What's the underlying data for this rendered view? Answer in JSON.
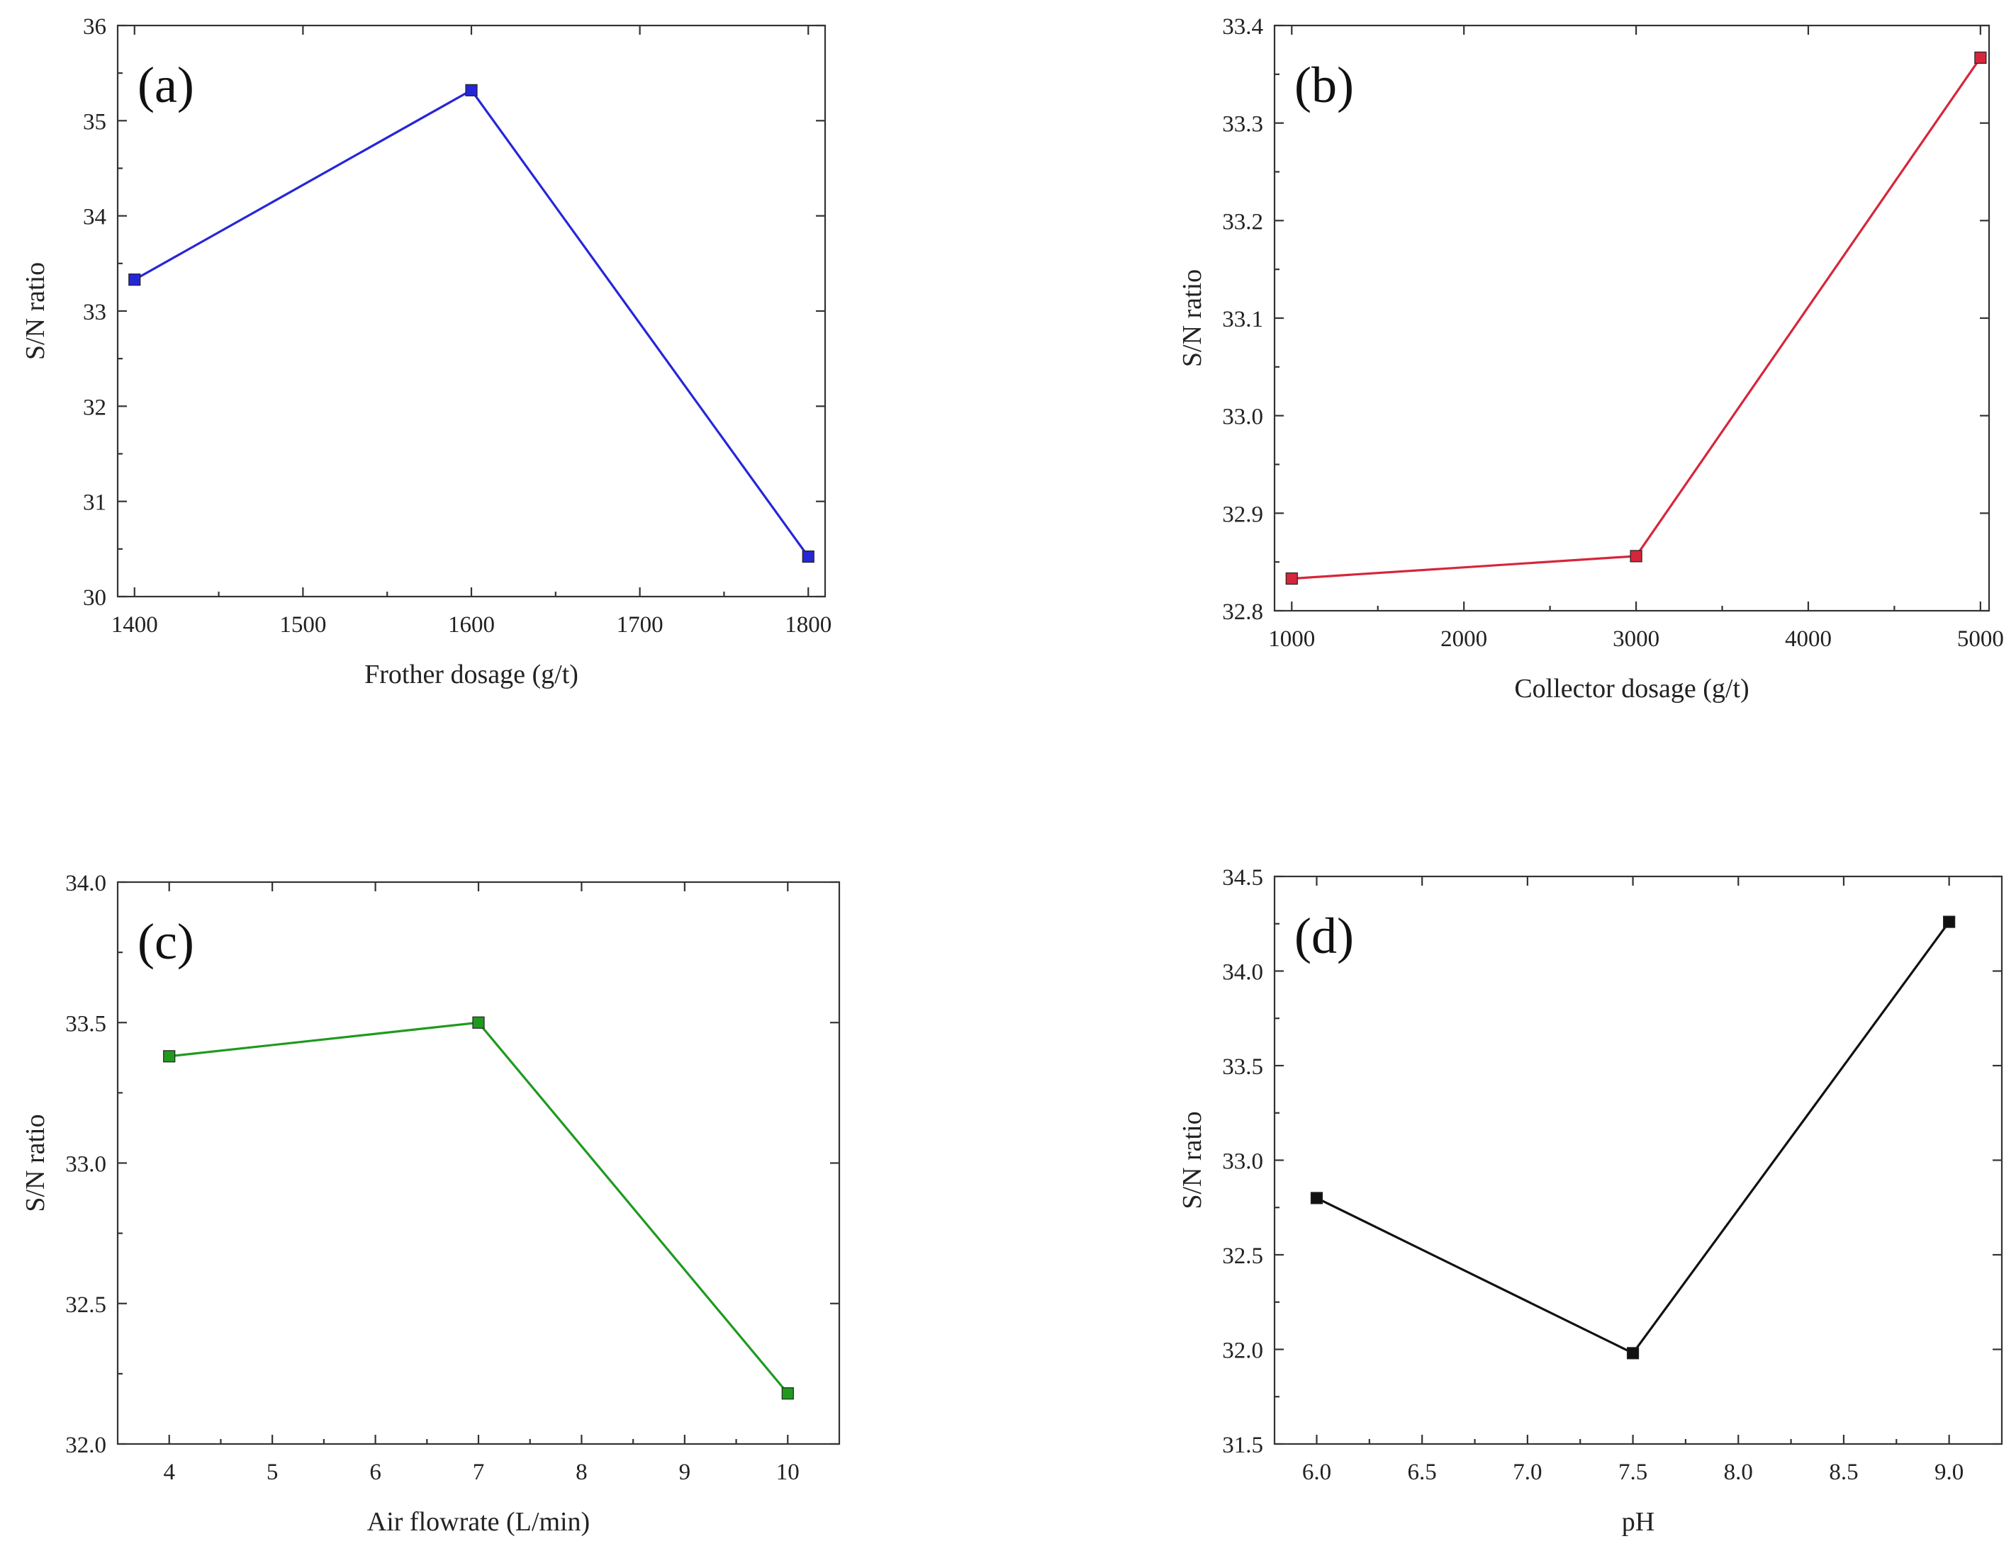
{
  "chart_data": [
    {
      "type": "line",
      "panel_label": "(a)",
      "xlabel": "Frother dosage (g/t)",
      "ylabel": "S/N ratio",
      "x": [
        1400,
        1600,
        1800
      ],
      "y": [
        33.33,
        35.32,
        30.42
      ],
      "xlim": [
        1390,
        1810
      ],
      "ylim": [
        30,
        36
      ],
      "xticks": [
        1400,
        1500,
        1600,
        1700,
        1800
      ],
      "yticks": [
        30,
        31,
        32,
        33,
        34,
        35,
        36
      ],
      "xtick_labels": [
        "1400",
        "1500",
        "1600",
        "1700",
        "1800"
      ],
      "ytick_labels": [
        "30",
        "31",
        "32",
        "33",
        "34",
        "35",
        "36"
      ],
      "color": "#2626d9",
      "marker": "square",
      "grid": false
    },
    {
      "type": "line",
      "panel_label": "(b)",
      "xlabel": "Collector dosage (g/t)",
      "ylabel": "S/N ratio",
      "x": [
        1000,
        3000,
        5000
      ],
      "y": [
        32.833,
        32.856,
        33.367
      ],
      "xlim": [
        900,
        5050
      ],
      "ylim": [
        32.8,
        33.4
      ],
      "xticks": [
        1000,
        2000,
        3000,
        4000,
        5000
      ],
      "yticks": [
        32.8,
        32.9,
        33.0,
        33.1,
        33.2,
        33.3,
        33.4
      ],
      "xtick_labels": [
        "1000",
        "2000",
        "3000",
        "4000",
        "5000"
      ],
      "ytick_labels": [
        "32.8",
        "32.9",
        "33.0",
        "33.1",
        "33.2",
        "33.3",
        "33.4"
      ],
      "color": "#d6263b",
      "marker": "square",
      "grid": false
    },
    {
      "type": "line",
      "panel_label": "(c)",
      "xlabel": "Air flowrate (L/min)",
      "ylabel": "S/N ratio",
      "x": [
        4,
        7,
        10
      ],
      "y": [
        33.38,
        33.5,
        32.18
      ],
      "xlim": [
        3.5,
        10.5
      ],
      "ylim": [
        32.0,
        34.0
      ],
      "xticks": [
        4,
        5,
        6,
        7,
        8,
        9,
        10
      ],
      "yticks": [
        32.0,
        32.5,
        33.0,
        33.5,
        34.0
      ],
      "xtick_labels": [
        "4",
        "5",
        "6",
        "7",
        "8",
        "9",
        "10"
      ],
      "ytick_labels": [
        "32.0",
        "32.5",
        "33.0",
        "33.5",
        "34.0"
      ],
      "color": "#1f9a1f",
      "marker": "square",
      "grid": false
    },
    {
      "type": "line",
      "panel_label": "(d)",
      "xlabel": "pH",
      "ylabel": "S/N ratio",
      "x": [
        6.0,
        7.5,
        9.0
      ],
      "y": [
        32.8,
        31.98,
        34.26
      ],
      "xlim": [
        5.8,
        9.25
      ],
      "ylim": [
        31.5,
        34.5
      ],
      "xticks": [
        6.0,
        6.5,
        7.0,
        7.5,
        8.0,
        8.5,
        9.0
      ],
      "yticks": [
        31.5,
        32.0,
        32.5,
        33.0,
        33.5,
        34.0,
        34.5
      ],
      "xtick_labels": [
        "6.0",
        "6.5",
        "7.0",
        "7.5",
        "8.0",
        "8.5",
        "9.0"
      ],
      "ytick_labels": [
        "31.5",
        "32.0",
        "32.5",
        "33.0",
        "33.5",
        "34.0",
        "34.5"
      ],
      "color": "#111111",
      "marker": "square",
      "grid": false
    }
  ]
}
